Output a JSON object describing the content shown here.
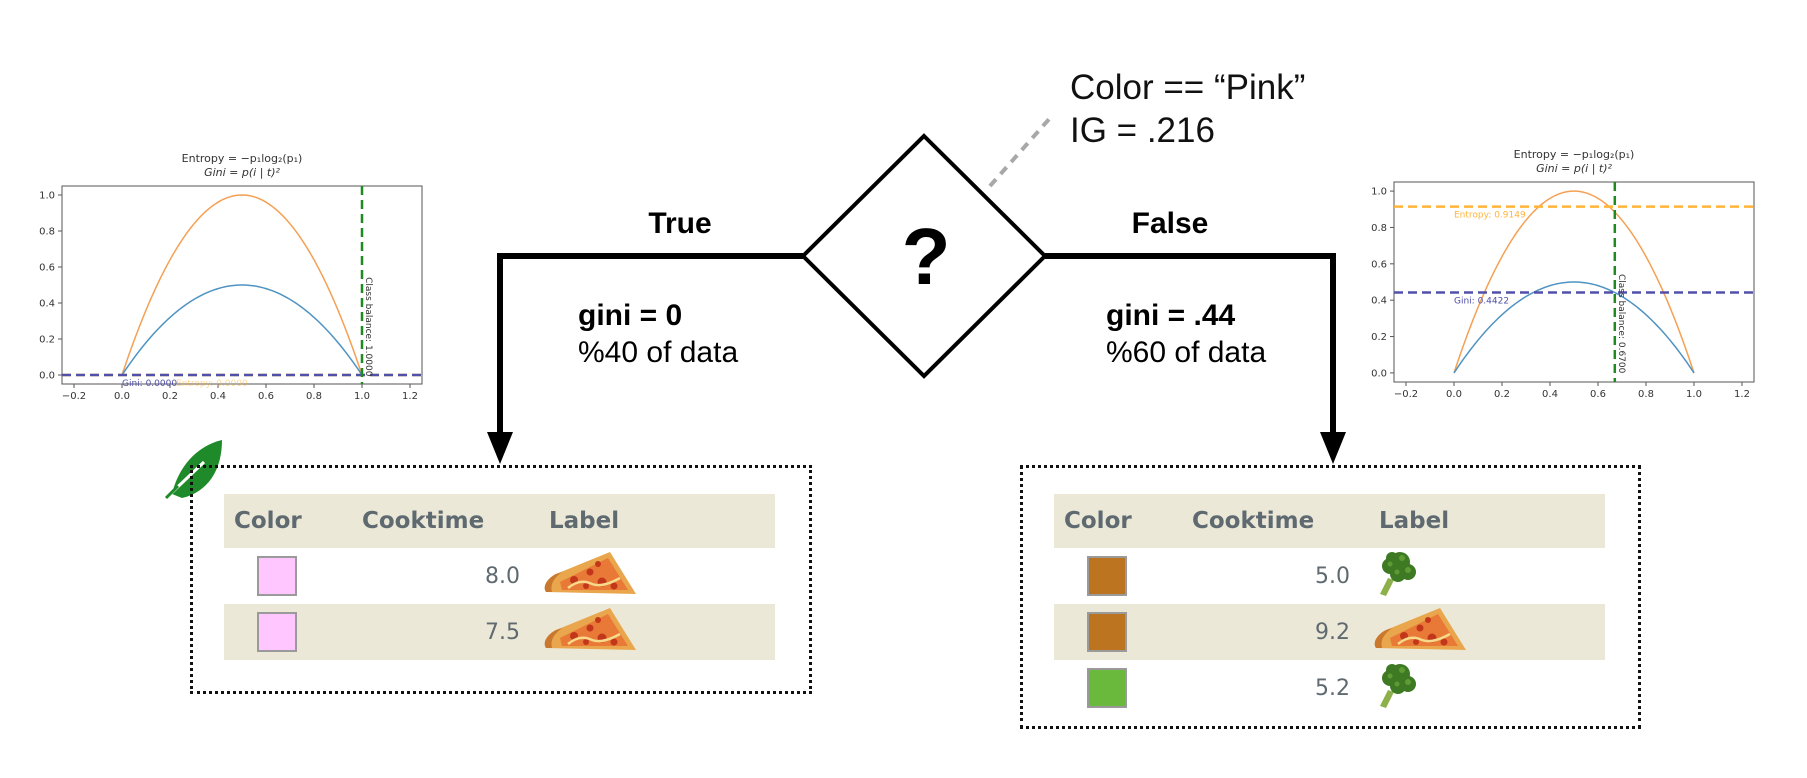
{
  "split": {
    "condition": "Color == “Pink”",
    "ig": "IG = .216",
    "symbol": "?"
  },
  "branches": {
    "true": {
      "label": "True",
      "gini": "gini = 0",
      "share": "%40 of data"
    },
    "false": {
      "label": "False",
      "gini": "gini = .44",
      "share": "%60 of data"
    }
  },
  "tables": {
    "headers": [
      "Color",
      "Cooktime",
      "Label"
    ],
    "left": {
      "rows": [
        {
          "color": "#ffc6ff",
          "cooktime": "8.0",
          "label": "pizza-icon",
          "shaded": false
        },
        {
          "color": "#ffc6ff",
          "cooktime": "7.5",
          "label": "pizza-icon",
          "shaded": true
        }
      ]
    },
    "right": {
      "rows": [
        {
          "color": "#bd7420",
          "cooktime": "5.0",
          "label": "broccoli-icon",
          "shaded": false
        },
        {
          "color": "#bd7420",
          "cooktime": "9.2",
          "label": "pizza-icon",
          "shaded": true
        },
        {
          "color": "#6ab93c",
          "cooktime": "5.2",
          "label": "broccoli-icon",
          "shaded": false
        }
      ]
    }
  },
  "leaf_icon": "leaf-icon",
  "chart_data": [
    {
      "type": "line",
      "title": "Entropy = −p₁log₂(p₁)",
      "subtitle": "Gini = p(i | t)²",
      "x_ticks": [
        "−0.2",
        "0.0",
        "0.2",
        "0.4",
        "0.6",
        "0.8",
        "1.0",
        "1.2"
      ],
      "y_ticks": [
        "0.0",
        "0.2",
        "0.4",
        "0.6",
        "0.8",
        "1.0"
      ],
      "xlim": [
        -0.25,
        1.25
      ],
      "ylim": [
        -0.05,
        1.05
      ],
      "series": [
        {
          "kind": "entropy",
          "color": "#f5a053",
          "peak": 1.0
        },
        {
          "kind": "gini",
          "color": "#4f93c2",
          "peak": 0.5
        }
      ],
      "class_balance": 1.0,
      "class_balance_label": "Class balance: 1.0000",
      "entropy_value": 0.0,
      "gini_value": 0.0,
      "entropy_label": "Entropy: 0.0000",
      "gini_label": "Gini: 0.0000",
      "colors": {
        "entropy_line": "#ffb43a",
        "gini_line": "#5050a8",
        "balance_line": "#1f8a1f"
      }
    },
    {
      "type": "line",
      "title": "Entropy = −p₁log₂(p₁)",
      "subtitle": "Gini = p(i | t)²",
      "x_ticks": [
        "−0.2",
        "0.0",
        "0.2",
        "0.4",
        "0.6",
        "0.8",
        "1.0",
        "1.2"
      ],
      "y_ticks": [
        "0.0",
        "0.2",
        "0.4",
        "0.6",
        "0.8",
        "1.0"
      ],
      "xlim": [
        -0.25,
        1.25
      ],
      "ylim": [
        -0.05,
        1.05
      ],
      "series": [
        {
          "kind": "entropy",
          "color": "#f5a053",
          "peak": 1.0
        },
        {
          "kind": "gini",
          "color": "#4f93c2",
          "peak": 0.5
        }
      ],
      "class_balance": 0.67,
      "class_balance_label": "Class balance: 0.6700",
      "entropy_value": 0.9149,
      "gini_value": 0.4422,
      "entropy_label": "Entropy: 0.9149",
      "gini_label": "Gini: 0.4422",
      "colors": {
        "entropy_line": "#ffb43a",
        "gini_line": "#5050a8",
        "balance_line": "#1f8a1f"
      }
    }
  ]
}
